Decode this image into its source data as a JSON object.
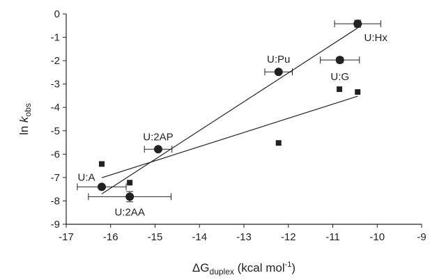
{
  "chart_data": {
    "type": "scatter",
    "x_label_parts": [
      "ΔG",
      "duplex",
      " (kcal mol",
      "-1",
      ")"
    ],
    "y_label_parts": [
      "ln ",
      "k",
      "obs"
    ],
    "xlim": [
      -17,
      -9
    ],
    "xticks": [
      -17,
      -16,
      -15,
      -14,
      -13,
      -12,
      -11,
      -10,
      -9
    ],
    "ylim": [
      -9,
      0
    ],
    "yticks": [
      0,
      -1,
      -2,
      -3,
      -4,
      -5,
      -6,
      -7,
      -8,
      -9
    ],
    "series": [
      {
        "marker": "circle",
        "color": "#222222",
        "labels": [
          "U:Hx",
          "U:G",
          "U:Pu",
          "U:2AP",
          "U:A",
          "U:2AA"
        ],
        "x": [
          -10.44,
          -10.84,
          -12.22,
          -14.93,
          -16.2,
          -15.57
        ],
        "values": [
          -0.42,
          -1.97,
          -2.48,
          -5.79,
          -7.4,
          -7.82
        ],
        "xerr": [
          0.52,
          0.44,
          0.31,
          0.31,
          0.55,
          0.93
        ],
        "yerr": [
          0.15,
          0.12,
          0.08,
          0.08,
          0.08,
          0.22
        ]
      },
      {
        "marker": "square",
        "color": "#222222",
        "x": [
          -16.2,
          -15.57,
          -12.22,
          -10.85,
          -10.44
        ],
        "values": [
          -6.42,
          -7.22,
          -5.52,
          -3.22,
          -3.34
        ]
      }
    ],
    "trendlines": [
      {
        "x": [
          -16.2,
          -10.44
        ],
        "values": [
          -7.7,
          -0.6
        ]
      },
      {
        "x": [
          -16.2,
          -10.44
        ],
        "values": [
          -7.01,
          -3.52
        ]
      }
    ]
  }
}
